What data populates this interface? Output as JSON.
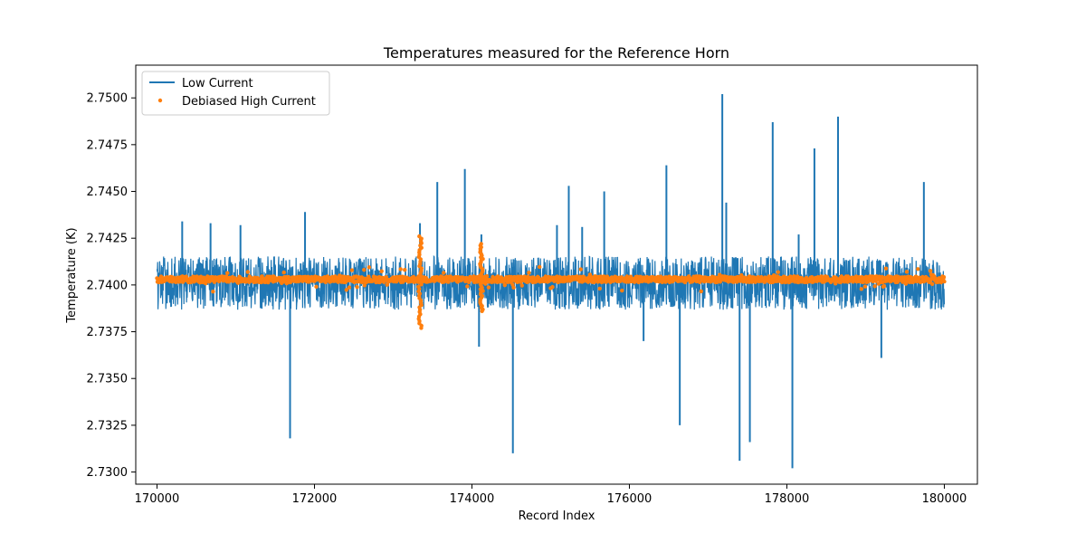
{
  "chart_data": {
    "type": "line",
    "title": "Temperatures measured for the Reference Horn",
    "xlabel": "Record Index",
    "ylabel": "Temperature (K)",
    "xlim": [
      169730,
      180420
    ],
    "ylim": [
      2.72935,
      2.75175
    ],
    "x_ticks": [
      170000,
      172000,
      174000,
      176000,
      178000,
      180000
    ],
    "x_tick_labels": [
      "170000",
      "172000",
      "174000",
      "176000",
      "178000",
      "180000"
    ],
    "y_ticks": [
      2.73,
      2.7325,
      2.735,
      2.7375,
      2.74,
      2.7425,
      2.745,
      2.7475,
      2.75
    ],
    "y_tick_labels": [
      "2.7300",
      "2.7325",
      "2.7350",
      "2.7375",
      "2.7400",
      "2.7425",
      "2.7450",
      "2.7475",
      "2.7500"
    ],
    "grid": false,
    "legend_position": "top-left",
    "x_range": [
      170000,
      180000
    ],
    "series": [
      {
        "name": "Low Current",
        "kind": "line",
        "color": "#1f77b4",
        "baseline": 2.7401,
        "band_low": 2.7386,
        "band_high": 2.7416,
        "spikes": [
          {
            "x": 170320,
            "y": 2.7434
          },
          {
            "x": 170680,
            "y": 2.7433
          },
          {
            "x": 171060,
            "y": 2.7432
          },
          {
            "x": 171690,
            "y": 2.7318
          },
          {
            "x": 171880,
            "y": 2.7439
          },
          {
            "x": 173340,
            "y": 2.7433
          },
          {
            "x": 173560,
            "y": 2.7455
          },
          {
            "x": 173910,
            "y": 2.7462
          },
          {
            "x": 174090,
            "y": 2.7367
          },
          {
            "x": 174120,
            "y": 2.7427
          },
          {
            "x": 174520,
            "y": 2.731
          },
          {
            "x": 175080,
            "y": 2.7432
          },
          {
            "x": 175230,
            "y": 2.7453
          },
          {
            "x": 175400,
            "y": 2.7431
          },
          {
            "x": 175680,
            "y": 2.745
          },
          {
            "x": 176180,
            "y": 2.737
          },
          {
            "x": 176470,
            "y": 2.7464
          },
          {
            "x": 176640,
            "y": 2.7325
          },
          {
            "x": 177180,
            "y": 2.7502
          },
          {
            "x": 177230,
            "y": 2.7444
          },
          {
            "x": 177400,
            "y": 2.7306
          },
          {
            "x": 177530,
            "y": 2.7316
          },
          {
            "x": 177820,
            "y": 2.7487
          },
          {
            "x": 178070,
            "y": 2.7302
          },
          {
            "x": 178150,
            "y": 2.7427
          },
          {
            "x": 178350,
            "y": 2.7473
          },
          {
            "x": 178650,
            "y": 2.749
          },
          {
            "x": 179200,
            "y": 2.7361
          },
          {
            "x": 179740,
            "y": 2.7455
          }
        ]
      },
      {
        "name": "Debiased High Current",
        "kind": "scatter",
        "color": "#ff7f0e",
        "baseline": 2.7403,
        "features": [
          {
            "x": 173340,
            "y_low": 2.7377,
            "y_high": 2.7426
          },
          {
            "x": 174120,
            "y_low": 2.7386,
            "y_high": 2.7422
          }
        ]
      }
    ]
  }
}
